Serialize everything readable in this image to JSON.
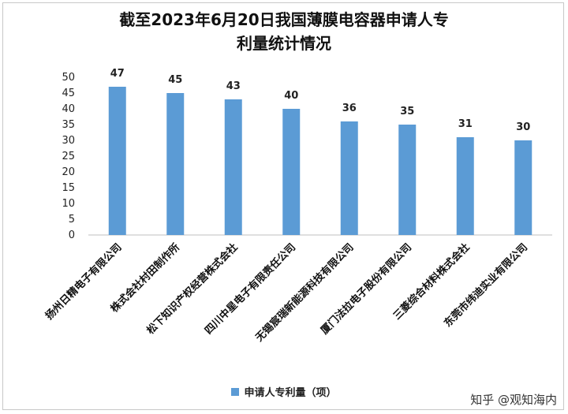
{
  "title": "截至2023年6月20日我国薄膜电容器申请人专利量统计情况",
  "watermark": "知乎 @观知海内",
  "colors": {
    "bar": "#5b9bd5"
  },
  "chart_data": {
    "type": "bar",
    "title": "截至2023年6月20日我国薄膜电容器申请人专利量统计情况",
    "categories": [
      "扬州日精电子有限公司",
      "株式会社村田制作所",
      "松下知识产权经营株式会社",
      "四川中星电子有限责任公司",
      "无锡宸瑞新能源科技有限公司",
      "厦门法拉电子股份有限公司",
      "三菱综合材料株式会社",
      "东莞市纬迪实业有限公司"
    ],
    "series": [
      {
        "name": "申请人专利量（项）",
        "values": [
          47,
          45,
          43,
          40,
          36,
          35,
          31,
          30
        ]
      }
    ],
    "ylim": [
      0,
      50
    ],
    "yticks": [
      0,
      5,
      10,
      15,
      20,
      25,
      30,
      35,
      40,
      45,
      50
    ],
    "grid": false,
    "legend": "bottom"
  }
}
